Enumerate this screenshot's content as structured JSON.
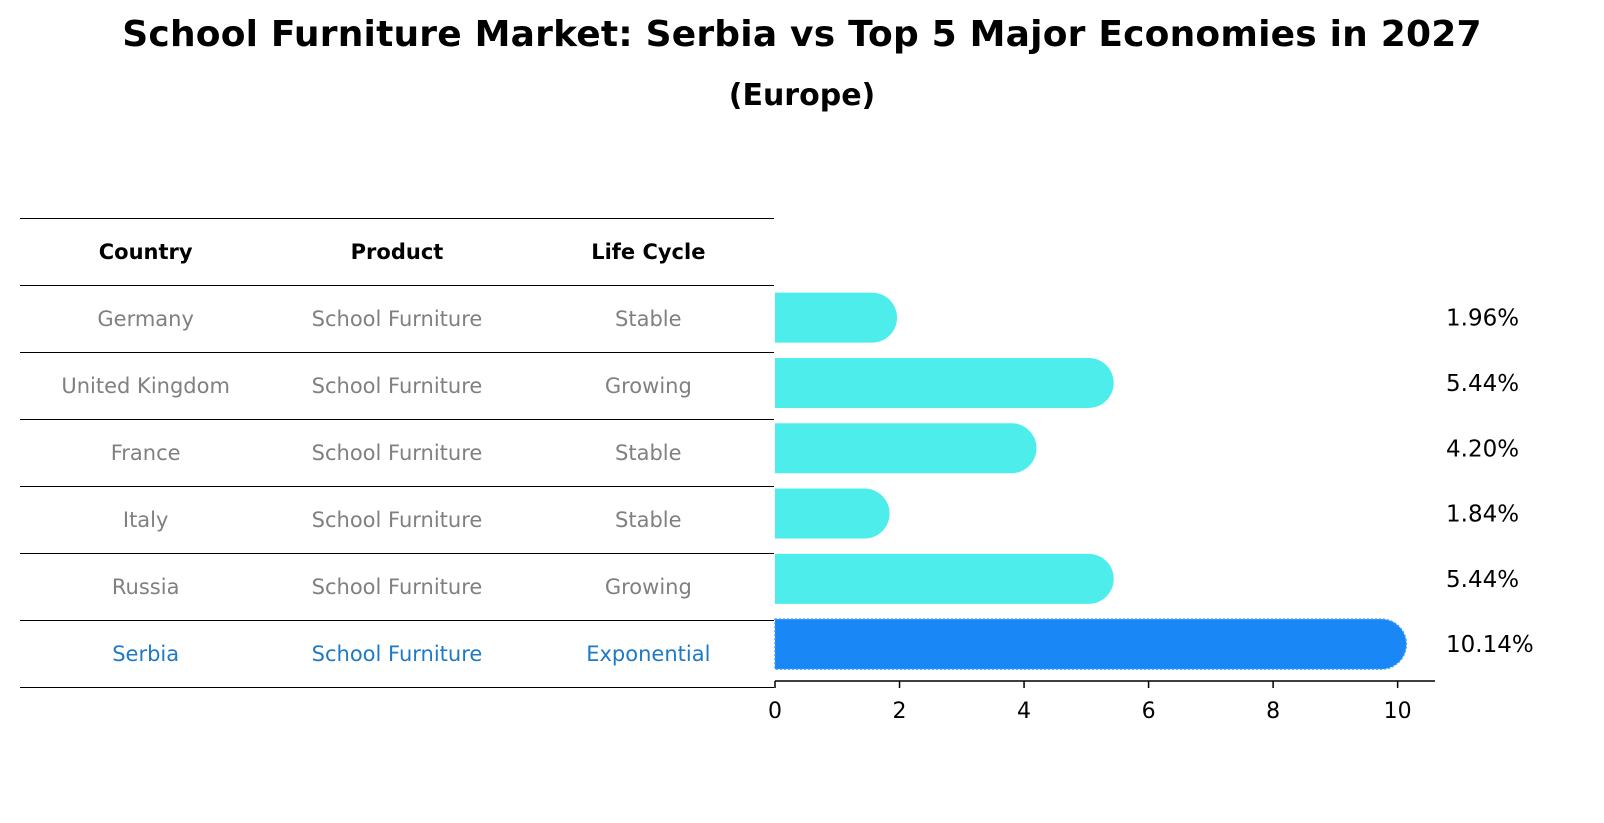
{
  "title": "School Furniture Market: Serbia vs Top 5 Major Economies in 2027",
  "subtitle": "(Europe)",
  "table": {
    "headers": [
      "Country",
      "Product",
      "Life Cycle"
    ],
    "rows": [
      [
        "Germany",
        "School Furniture",
        "Stable"
      ],
      [
        "United Kingdom",
        "School Furniture",
        "Growing"
      ],
      [
        "France",
        "School Furniture",
        "Stable"
      ],
      [
        "Italy",
        "School Furniture",
        "Stable"
      ],
      [
        "Russia",
        "School Furniture",
        "Growing"
      ],
      [
        "Serbia",
        "School Furniture",
        "Exponential"
      ]
    ],
    "highlight_row": 5
  },
  "colors": {
    "bar": "#4DEDEB",
    "highlight_bar": "#1A87F6",
    "highlight_text": "#1F7AC4",
    "muted_text": "#808080"
  },
  "chart_data": {
    "type": "bar",
    "orientation": "horizontal",
    "categories": [
      "Germany",
      "United Kingdom",
      "France",
      "Italy",
      "Russia",
      "Serbia"
    ],
    "values": [
      1.96,
      5.44,
      4.2,
      1.84,
      5.44,
      10.14
    ],
    "value_labels": [
      "1.96%",
      "5.44%",
      "4.20%",
      "1.84%",
      "5.44%",
      "10.14%"
    ],
    "highlight": "Serbia",
    "xlim": [
      0,
      10.6
    ],
    "xticks": [
      0,
      2,
      4,
      6,
      8,
      10
    ],
    "xtick_labels": [
      "0",
      "2",
      "4",
      "6",
      "8",
      "10"
    ],
    "xlabel": "",
    "ylabel": "",
    "grid": false
  }
}
